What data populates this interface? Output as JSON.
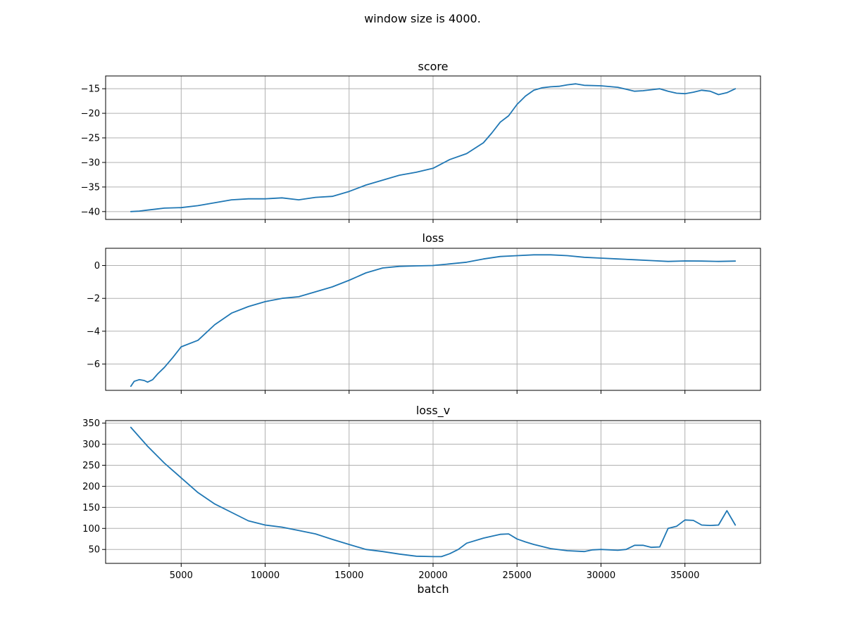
{
  "figure": {
    "suptitle": "window size is 4000.",
    "xlabel": "batch"
  },
  "colors": {
    "line": "#1f77b4",
    "grid": "#b0b0b0"
  },
  "chart_data": [
    {
      "type": "line",
      "title": "score",
      "xlim": [
        500,
        39500
      ],
      "ylim": [
        -41.6,
        -12.4
      ],
      "xticks": [
        5000,
        10000,
        15000,
        20000,
        25000,
        30000,
        35000
      ],
      "xticklabels_shown": false,
      "yticks": [
        -40,
        -35,
        -30,
        -25,
        -20,
        -15
      ],
      "ytick_labels": [
        "−40",
        "−35",
        "−30",
        "−25",
        "−20",
        "−15"
      ],
      "grid": true,
      "x": [
        2000,
        2500,
        3000,
        3500,
        4000,
        5000,
        6000,
        7000,
        8000,
        9000,
        10000,
        11000,
        12000,
        13000,
        14000,
        15000,
        16000,
        17000,
        18000,
        19000,
        20000,
        21000,
        22000,
        23000,
        23500,
        24000,
        24500,
        25000,
        25500,
        26000,
        26500,
        27000,
        27500,
        28000,
        28500,
        29000,
        30000,
        31000,
        32000,
        32500,
        33000,
        33500,
        34000,
        34500,
        35000,
        35500,
        36000,
        36500,
        37000,
        37500,
        38000
      ],
      "y": [
        -40.0,
        -39.9,
        -39.7,
        -39.5,
        -39.3,
        -39.2,
        -38.8,
        -38.2,
        -37.6,
        -37.4,
        -37.4,
        -37.2,
        -37.6,
        -37.1,
        -36.9,
        -35.9,
        -34.6,
        -33.6,
        -32.6,
        -32.0,
        -31.2,
        -29.4,
        -28.2,
        -26.0,
        -24.0,
        -21.8,
        -20.5,
        -18.2,
        -16.5,
        -15.3,
        -14.8,
        -14.6,
        -14.5,
        -14.2,
        -14.0,
        -14.3,
        -14.4,
        -14.7,
        -15.5,
        -15.4,
        -15.2,
        -15.0,
        -15.5,
        -15.9,
        -16.0,
        -15.7,
        -15.3,
        -15.5,
        -16.2,
        -15.8,
        -15.0
      ]
    },
    {
      "type": "line",
      "title": "loss",
      "xlim": [
        500,
        39500
      ],
      "ylim": [
        -7.6,
        1.05
      ],
      "xticks": [
        5000,
        10000,
        15000,
        20000,
        25000,
        30000,
        35000
      ],
      "xticklabels_shown": false,
      "yticks": [
        -6,
        -4,
        -2,
        0
      ],
      "ytick_labels": [
        "−6",
        "−4",
        "−2",
        "0"
      ],
      "grid": true,
      "x": [
        2000,
        2200,
        2500,
        2800,
        3000,
        3300,
        3600,
        4000,
        4500,
        5000,
        6000,
        7000,
        8000,
        9000,
        10000,
        11000,
        12000,
        13000,
        14000,
        15000,
        16000,
        17000,
        18000,
        19000,
        20000,
        21000,
        22000,
        23000,
        24000,
        25000,
        26000,
        27000,
        28000,
        29000,
        30000,
        31000,
        32000,
        33000,
        34000,
        35000,
        36000,
        37000,
        38000
      ],
      "y": [
        -7.35,
        -7.05,
        -6.95,
        -7.0,
        -7.1,
        -6.95,
        -6.6,
        -6.2,
        -5.6,
        -4.95,
        -4.55,
        -3.6,
        -2.9,
        -2.5,
        -2.2,
        -2.0,
        -1.9,
        -1.6,
        -1.3,
        -0.9,
        -0.45,
        -0.15,
        -0.05,
        -0.02,
        0.0,
        0.1,
        0.2,
        0.4,
        0.55,
        0.6,
        0.65,
        0.65,
        0.6,
        0.5,
        0.45,
        0.4,
        0.35,
        0.3,
        0.25,
        0.28,
        0.27,
        0.25,
        0.27
      ]
    },
    {
      "type": "line",
      "title": "loss_v",
      "xlim": [
        500,
        39500
      ],
      "ylim": [
        17,
        356
      ],
      "xticks": [
        5000,
        10000,
        15000,
        20000,
        25000,
        30000,
        35000
      ],
      "xtick_labels": [
        "5000",
        "10000",
        "15000",
        "20000",
        "25000",
        "30000",
        "35000"
      ],
      "xticklabels_shown": true,
      "yticks": [
        50,
        100,
        150,
        200,
        250,
        300,
        350
      ],
      "ytick_labels": [
        "50",
        "100",
        "150",
        "200",
        "250",
        "300",
        "350"
      ],
      "grid": true,
      "x": [
        2000,
        3000,
        4000,
        5000,
        6000,
        7000,
        8000,
        9000,
        10000,
        11000,
        12000,
        13000,
        14000,
        15000,
        16000,
        17000,
        18000,
        19000,
        20000,
        20500,
        21000,
        21500,
        22000,
        23000,
        24000,
        24500,
        25000,
        25500,
        26000,
        27000,
        28000,
        29000,
        29500,
        30000,
        31000,
        31500,
        32000,
        32500,
        33000,
        33500,
        34000,
        34500,
        35000,
        35500,
        36000,
        36500,
        37000,
        37500,
        38000
      ],
      "y": [
        340,
        295,
        255,
        220,
        185,
        158,
        138,
        118,
        108,
        103,
        95,
        87,
        74,
        62,
        50,
        45,
        39,
        34,
        33,
        33,
        40,
        50,
        65,
        77,
        86,
        87,
        75,
        68,
        62,
        52,
        47,
        45,
        49,
        50,
        48,
        50,
        60,
        60,
        55,
        56,
        100,
        105,
        120,
        119,
        108,
        107,
        108,
        142,
        108
      ]
    }
  ]
}
